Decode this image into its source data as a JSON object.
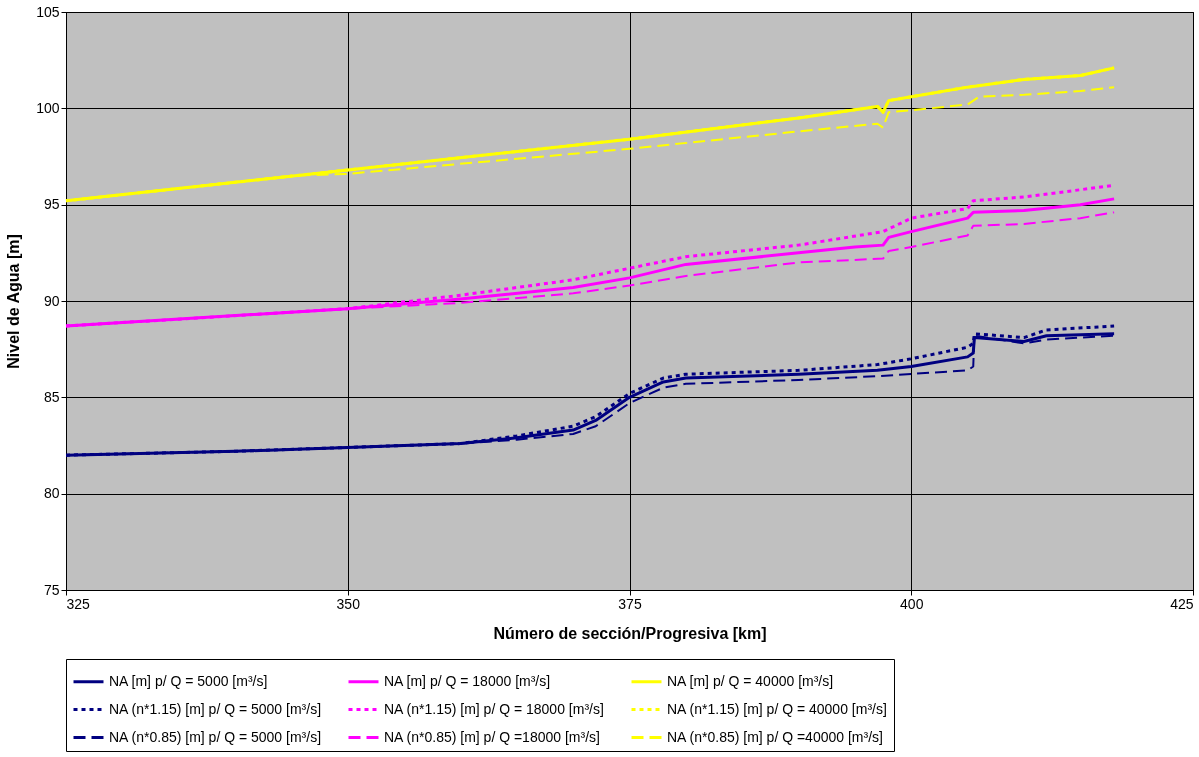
{
  "chart_data": {
    "type": "line",
    "xlabel": "Número de sección/Progresiva [km]",
    "ylabel": "Nivel de Agua [m]",
    "xlim": [
      325,
      425
    ],
    "xticks": [
      325,
      350,
      375,
      400,
      425
    ],
    "ylim": [
      75,
      105
    ],
    "yticks": [
      75,
      80,
      85,
      90,
      95,
      100,
      105
    ],
    "grid": true,
    "legend": "bottom",
    "marker": "none",
    "series": [
      {
        "name": "NA [m] p/ Q = 5000 [m³/s]",
        "color": "#000080",
        "line_style": "solid",
        "x": [
          325,
          340,
          350,
          360,
          365,
          370,
          372,
          375,
          378,
          380,
          390,
          397,
          400,
          405,
          405.5,
          405.6,
          410,
          412,
          418
        ],
        "values": [
          82.0,
          82.2,
          82.4,
          82.6,
          82.9,
          83.3,
          83.8,
          85.0,
          85.8,
          86.0,
          86.2,
          86.4,
          86.6,
          87.1,
          87.3,
          88.1,
          87.9,
          88.2,
          88.3
        ]
      },
      {
        "name": "NA [m] p/ Q = 18000 [m³/s]",
        "color": "#ff00ff",
        "line_style": "solid",
        "x": [
          325,
          350,
          360,
          370,
          375,
          380,
          390,
          395,
          397.5,
          398,
          400,
          405,
          405.5,
          410,
          415,
          418
        ],
        "values": [
          88.7,
          89.6,
          90.1,
          90.7,
          91.2,
          91.9,
          92.5,
          92.8,
          92.9,
          93.3,
          93.6,
          94.3,
          94.6,
          94.7,
          95.0,
          95.3
        ]
      },
      {
        "name": "NA [m] p/ Q = 40000 [m³/s]",
        "color": "#ffff00",
        "line_style": "solid",
        "x": [
          325,
          350,
          375,
          390,
          397,
          397.5,
          398,
          400,
          405,
          410,
          415,
          418
        ],
        "values": [
          95.2,
          96.8,
          98.4,
          99.5,
          100.1,
          99.8,
          100.4,
          100.6,
          101.1,
          101.5,
          101.7,
          102.1
        ]
      },
      {
        "name": "NA (n*1.15) [m] p/ Q = 5000 [m³/s]",
        "color": "#000080",
        "line_style": "dotted",
        "x": [
          325,
          340,
          350,
          360,
          365,
          370,
          372,
          375,
          378,
          380,
          390,
          397,
          400,
          405,
          405.5,
          405.6,
          410,
          412,
          418
        ],
        "values": [
          82.0,
          82.2,
          82.4,
          82.6,
          83.0,
          83.5,
          84.0,
          85.2,
          86.0,
          86.2,
          86.4,
          86.7,
          87.0,
          87.6,
          87.8,
          88.3,
          88.1,
          88.5,
          88.7
        ]
      },
      {
        "name": "NA (n*1.15) [m] p/ Q = 18000 [m³/s]",
        "color": "#ff00ff",
        "line_style": "dotted",
        "x": [
          325,
          350,
          360,
          370,
          375,
          380,
          390,
          397.5,
          400,
          405,
          405.5,
          410,
          418
        ],
        "values": [
          88.7,
          89.6,
          90.3,
          91.1,
          91.7,
          92.3,
          92.9,
          93.6,
          94.3,
          94.8,
          95.2,
          95.4,
          96.0
        ]
      },
      {
        "name": "NA (n*1.15) [m] p/ Q = 40000 [m³/s]",
        "color": "#ffff00",
        "line_style": "dotted",
        "x": [
          325,
          350,
          375,
          390,
          397,
          397.5,
          398,
          400,
          405,
          410,
          415,
          418
        ],
        "values": [
          95.2,
          96.8,
          98.4,
          99.5,
          100.1,
          99.8,
          100.4,
          100.6,
          101.1,
          101.5,
          101.7,
          102.1
        ]
      },
      {
        "name": "NA (n*0.85) [m] p/ Q = 5000 [m³/s]",
        "color": "#000080",
        "line_style": "dashed",
        "x": [
          325,
          340,
          350,
          360,
          365,
          370,
          372,
          375,
          378,
          380,
          390,
          397,
          405,
          405.5,
          405.6,
          410,
          412,
          418
        ],
        "values": [
          82.0,
          82.2,
          82.4,
          82.6,
          82.8,
          83.1,
          83.5,
          84.7,
          85.5,
          85.7,
          85.9,
          86.1,
          86.4,
          86.6,
          88.2,
          87.8,
          88.0,
          88.2
        ]
      },
      {
        "name": "NA (n*0.85) [m] p/ Q =18000 [m³/s]",
        "color": "#ff00ff",
        "line_style": "dashed",
        "x": [
          325,
          350,
          360,
          370,
          375,
          380,
          390,
          397.5,
          398,
          400,
          405,
          405.5,
          410,
          415,
          418
        ],
        "values": [
          88.7,
          89.6,
          89.9,
          90.4,
          90.8,
          91.3,
          92.0,
          92.2,
          92.6,
          92.8,
          93.4,
          93.9,
          94.0,
          94.3,
          94.6
        ]
      },
      {
        "name": "NA (n*0.85) [m] p/ Q =40000 [m³/s]",
        "color": "#ffff00",
        "line_style": "dashed",
        "x": [
          325,
          345,
          350,
          375,
          390,
          397,
          397.5,
          398,
          400,
          405,
          406,
          410,
          415,
          418
        ],
        "values": [
          95.2,
          96.5,
          96.6,
          97.9,
          98.8,
          99.2,
          99.0,
          99.8,
          99.9,
          100.2,
          100.6,
          100.7,
          100.9,
          101.1
        ]
      }
    ]
  }
}
